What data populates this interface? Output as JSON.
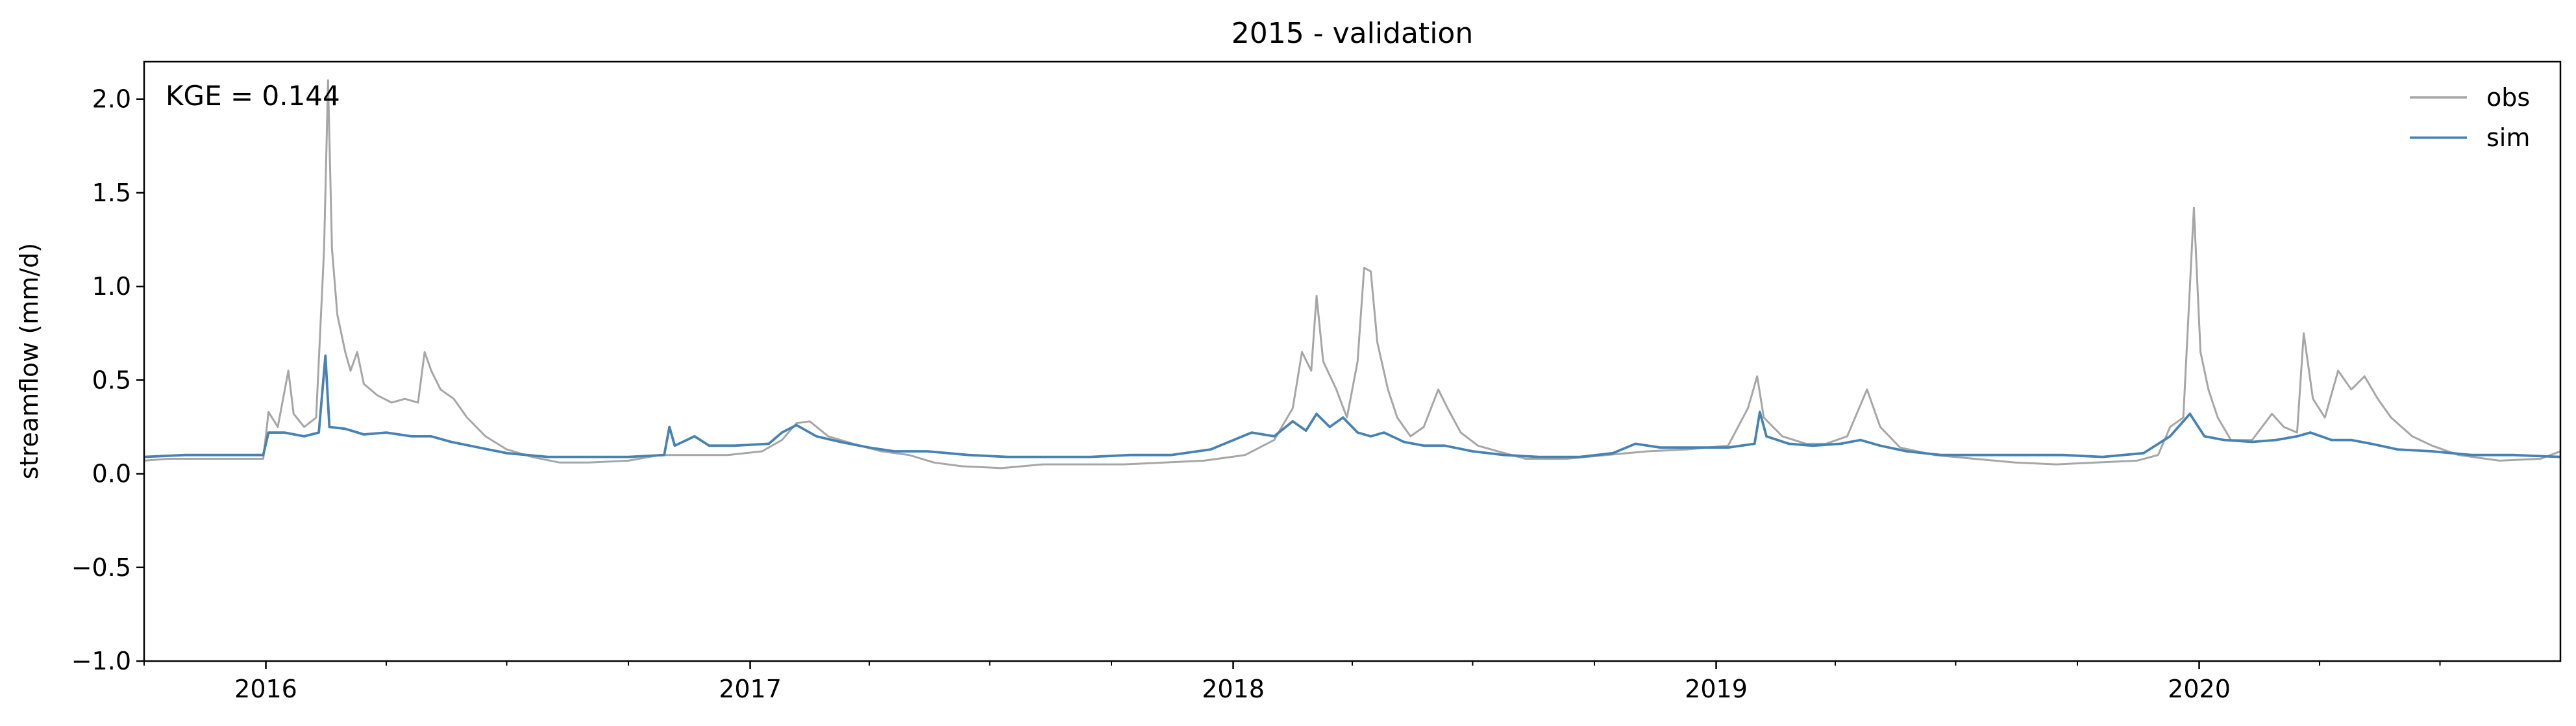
{
  "chart_data": {
    "type": "line",
    "title": "2015 - validation",
    "xlabel": "",
    "ylabel": "streamflow (mm/d)",
    "xlim": [
      "2015-10-01",
      "2020-09-30"
    ],
    "ylim": [
      -1.0,
      2.2
    ],
    "x_ticks": [
      "2016",
      "2017",
      "2018",
      "2019",
      "2020"
    ],
    "x_tick_dates": [
      "2016-01-01",
      "2017-01-01",
      "2018-01-01",
      "2019-01-01",
      "2020-01-01"
    ],
    "y_ticks": [
      -1.0,
      -0.5,
      0.0,
      0.5,
      1.0,
      1.5,
      2.0
    ],
    "y_tick_labels": [
      "−1.0",
      "−0.5",
      "0.0",
      "0.5",
      "1.0",
      "1.5",
      "2.0"
    ],
    "grid": false,
    "legend_position": "top-right",
    "annotation": "KGE = 0.144",
    "series": [
      {
        "name": "obs",
        "color": "#a6a6a6",
        "points": [
          [
            "2015-10-01",
            0.07
          ],
          [
            "2015-10-20",
            0.08
          ],
          [
            "2015-11-15",
            0.08
          ],
          [
            "2015-12-10",
            0.08
          ],
          [
            "2015-12-30",
            0.08
          ],
          [
            "2016-01-03",
            0.33
          ],
          [
            "2016-01-10",
            0.25
          ],
          [
            "2016-01-18",
            0.55
          ],
          [
            "2016-01-22",
            0.32
          ],
          [
            "2016-01-30",
            0.25
          ],
          [
            "2016-02-08",
            0.3
          ],
          [
            "2016-02-14",
            1.2
          ],
          [
            "2016-02-17",
            2.1
          ],
          [
            "2016-02-20",
            1.2
          ],
          [
            "2016-02-24",
            0.85
          ],
          [
            "2016-03-01",
            0.65
          ],
          [
            "2016-03-05",
            0.55
          ],
          [
            "2016-03-10",
            0.65
          ],
          [
            "2016-03-15",
            0.48
          ],
          [
            "2016-03-25",
            0.42
          ],
          [
            "2016-04-05",
            0.38
          ],
          [
            "2016-04-15",
            0.4
          ],
          [
            "2016-04-25",
            0.38
          ],
          [
            "2016-04-30",
            0.65
          ],
          [
            "2016-05-05",
            0.55
          ],
          [
            "2016-05-12",
            0.45
          ],
          [
            "2016-05-22",
            0.4
          ],
          [
            "2016-06-01",
            0.3
          ],
          [
            "2016-06-15",
            0.2
          ],
          [
            "2016-07-01",
            0.13
          ],
          [
            "2016-07-20",
            0.09
          ],
          [
            "2016-08-10",
            0.06
          ],
          [
            "2016-09-01",
            0.06
          ],
          [
            "2016-10-01",
            0.07
          ],
          [
            "2016-10-25",
            0.1
          ],
          [
            "2016-11-15",
            0.1
          ],
          [
            "2016-12-15",
            0.1
          ],
          [
            "2017-01-10",
            0.12
          ],
          [
            "2017-01-25",
            0.18
          ],
          [
            "2017-02-05",
            0.27
          ],
          [
            "2017-02-15",
            0.28
          ],
          [
            "2017-03-01",
            0.2
          ],
          [
            "2017-03-20",
            0.16
          ],
          [
            "2017-04-10",
            0.12
          ],
          [
            "2017-05-01",
            0.1
          ],
          [
            "2017-05-20",
            0.06
          ],
          [
            "2017-06-10",
            0.04
          ],
          [
            "2017-07-10",
            0.03
          ],
          [
            "2017-08-10",
            0.05
          ],
          [
            "2017-09-10",
            0.05
          ],
          [
            "2017-10-10",
            0.05
          ],
          [
            "2017-11-10",
            0.06
          ],
          [
            "2017-12-10",
            0.07
          ],
          [
            "2018-01-10",
            0.1
          ],
          [
            "2018-02-01",
            0.18
          ],
          [
            "2018-02-15",
            0.35
          ],
          [
            "2018-02-22",
            0.65
          ],
          [
            "2018-03-01",
            0.55
          ],
          [
            "2018-03-05",
            0.95
          ],
          [
            "2018-03-10",
            0.6
          ],
          [
            "2018-03-20",
            0.45
          ],
          [
            "2018-03-28",
            0.3
          ],
          [
            "2018-04-05",
            0.6
          ],
          [
            "2018-04-10",
            1.1
          ],
          [
            "2018-04-15",
            1.08
          ],
          [
            "2018-04-20",
            0.7
          ],
          [
            "2018-04-28",
            0.45
          ],
          [
            "2018-05-05",
            0.3
          ],
          [
            "2018-05-15",
            0.2
          ],
          [
            "2018-05-25",
            0.25
          ],
          [
            "2018-06-05",
            0.45
          ],
          [
            "2018-06-12",
            0.35
          ],
          [
            "2018-06-22",
            0.22
          ],
          [
            "2018-07-05",
            0.15
          ],
          [
            "2018-07-20",
            0.12
          ],
          [
            "2018-08-10",
            0.08
          ],
          [
            "2018-09-10",
            0.08
          ],
          [
            "2018-10-10",
            0.1
          ],
          [
            "2018-11-10",
            0.12
          ],
          [
            "2018-12-10",
            0.13
          ],
          [
            "2019-01-10",
            0.15
          ],
          [
            "2019-01-25",
            0.35
          ],
          [
            "2019-02-01",
            0.52
          ],
          [
            "2019-02-06",
            0.3
          ],
          [
            "2019-02-20",
            0.2
          ],
          [
            "2019-03-10",
            0.16
          ],
          [
            "2019-03-25",
            0.16
          ],
          [
            "2019-04-10",
            0.2
          ],
          [
            "2019-04-25",
            0.45
          ],
          [
            "2019-05-05",
            0.25
          ],
          [
            "2019-05-20",
            0.14
          ],
          [
            "2019-06-15",
            0.1
          ],
          [
            "2019-07-15",
            0.08
          ],
          [
            "2019-08-15",
            0.06
          ],
          [
            "2019-09-15",
            0.05
          ],
          [
            "2019-10-15",
            0.06
          ],
          [
            "2019-11-15",
            0.07
          ],
          [
            "2019-12-01",
            0.1
          ],
          [
            "2019-12-10",
            0.25
          ],
          [
            "2019-12-20",
            0.3
          ],
          [
            "2019-12-28",
            1.42
          ],
          [
            "2020-01-02",
            0.65
          ],
          [
            "2020-01-08",
            0.45
          ],
          [
            "2020-01-15",
            0.3
          ],
          [
            "2020-01-25",
            0.18
          ],
          [
            "2020-02-10",
            0.18
          ],
          [
            "2020-02-25",
            0.32
          ],
          [
            "2020-03-05",
            0.25
          ],
          [
            "2020-03-15",
            0.22
          ],
          [
            "2020-03-20",
            0.75
          ],
          [
            "2020-03-27",
            0.4
          ],
          [
            "2020-04-05",
            0.3
          ],
          [
            "2020-04-15",
            0.55
          ],
          [
            "2020-04-25",
            0.45
          ],
          [
            "2020-05-05",
            0.52
          ],
          [
            "2020-05-15",
            0.4
          ],
          [
            "2020-05-25",
            0.3
          ],
          [
            "2020-06-10",
            0.2
          ],
          [
            "2020-06-25",
            0.15
          ],
          [
            "2020-07-15",
            0.1
          ],
          [
            "2020-08-15",
            0.07
          ],
          [
            "2020-09-15",
            0.08
          ],
          [
            "2020-09-30",
            0.12
          ]
        ]
      },
      {
        "name": "sim",
        "color": "#4682b4",
        "points": [
          [
            "2015-10-01",
            0.09
          ],
          [
            "2015-11-01",
            0.1
          ],
          [
            "2015-12-01",
            0.1
          ],
          [
            "2015-12-30",
            0.1
          ],
          [
            "2016-01-03",
            0.22
          ],
          [
            "2016-01-15",
            0.22
          ],
          [
            "2016-01-30",
            0.2
          ],
          [
            "2016-02-10",
            0.22
          ],
          [
            "2016-02-15",
            0.63
          ],
          [
            "2016-02-18",
            0.25
          ],
          [
            "2016-03-01",
            0.24
          ],
          [
            "2016-03-15",
            0.21
          ],
          [
            "2016-04-01",
            0.22
          ],
          [
            "2016-04-20",
            0.2
          ],
          [
            "2016-05-05",
            0.2
          ],
          [
            "2016-05-20",
            0.17
          ],
          [
            "2016-06-10",
            0.14
          ],
          [
            "2016-07-01",
            0.11
          ],
          [
            "2016-08-01",
            0.09
          ],
          [
            "2016-09-01",
            0.09
          ],
          [
            "2016-10-01",
            0.09
          ],
          [
            "2016-10-28",
            0.1
          ],
          [
            "2016-11-01",
            0.25
          ],
          [
            "2016-11-05",
            0.15
          ],
          [
            "2016-11-20",
            0.2
          ],
          [
            "2016-12-01",
            0.15
          ],
          [
            "2016-12-20",
            0.15
          ],
          [
            "2017-01-15",
            0.16
          ],
          [
            "2017-01-25",
            0.22
          ],
          [
            "2017-02-05",
            0.26
          ],
          [
            "2017-02-20",
            0.2
          ],
          [
            "2017-03-10",
            0.17
          ],
          [
            "2017-04-01",
            0.14
          ],
          [
            "2017-04-20",
            0.12
          ],
          [
            "2017-05-15",
            0.12
          ],
          [
            "2017-06-15",
            0.1
          ],
          [
            "2017-07-15",
            0.09
          ],
          [
            "2017-08-15",
            0.09
          ],
          [
            "2017-09-15",
            0.09
          ],
          [
            "2017-10-15",
            0.1
          ],
          [
            "2017-11-15",
            0.1
          ],
          [
            "2017-12-15",
            0.13
          ],
          [
            "2018-01-15",
            0.22
          ],
          [
            "2018-02-01",
            0.2
          ],
          [
            "2018-02-15",
            0.28
          ],
          [
            "2018-02-25",
            0.23
          ],
          [
            "2018-03-05",
            0.32
          ],
          [
            "2018-03-15",
            0.25
          ],
          [
            "2018-03-25",
            0.3
          ],
          [
            "2018-04-05",
            0.22
          ],
          [
            "2018-04-15",
            0.2
          ],
          [
            "2018-04-25",
            0.22
          ],
          [
            "2018-05-10",
            0.17
          ],
          [
            "2018-05-25",
            0.15
          ],
          [
            "2018-06-10",
            0.15
          ],
          [
            "2018-07-01",
            0.12
          ],
          [
            "2018-07-25",
            0.1
          ],
          [
            "2018-08-20",
            0.09
          ],
          [
            "2018-09-20",
            0.09
          ],
          [
            "2018-10-15",
            0.11
          ],
          [
            "2018-11-01",
            0.16
          ],
          [
            "2018-11-20",
            0.14
          ],
          [
            "2018-12-15",
            0.14
          ],
          [
            "2019-01-10",
            0.14
          ],
          [
            "2019-01-30",
            0.16
          ],
          [
            "2019-02-03",
            0.33
          ],
          [
            "2019-02-08",
            0.2
          ],
          [
            "2019-02-25",
            0.16
          ],
          [
            "2019-03-15",
            0.15
          ],
          [
            "2019-04-05",
            0.16
          ],
          [
            "2019-04-20",
            0.18
          ],
          [
            "2019-05-05",
            0.15
          ],
          [
            "2019-05-25",
            0.12
          ],
          [
            "2019-06-20",
            0.1
          ],
          [
            "2019-07-20",
            0.1
          ],
          [
            "2019-08-20",
            0.1
          ],
          [
            "2019-09-20",
            0.1
          ],
          [
            "2019-10-20",
            0.09
          ],
          [
            "2019-11-20",
            0.11
          ],
          [
            "2019-12-10",
            0.2
          ],
          [
            "2019-12-25",
            0.32
          ],
          [
            "2020-01-05",
            0.2
          ],
          [
            "2020-01-20",
            0.18
          ],
          [
            "2020-02-10",
            0.17
          ],
          [
            "2020-02-28",
            0.18
          ],
          [
            "2020-03-15",
            0.2
          ],
          [
            "2020-03-25",
            0.22
          ],
          [
            "2020-04-10",
            0.18
          ],
          [
            "2020-04-25",
            0.18
          ],
          [
            "2020-05-10",
            0.16
          ],
          [
            "2020-05-30",
            0.13
          ],
          [
            "2020-06-25",
            0.12
          ],
          [
            "2020-07-25",
            0.1
          ],
          [
            "2020-08-25",
            0.1
          ],
          [
            "2020-09-30",
            0.09
          ]
        ]
      }
    ]
  }
}
